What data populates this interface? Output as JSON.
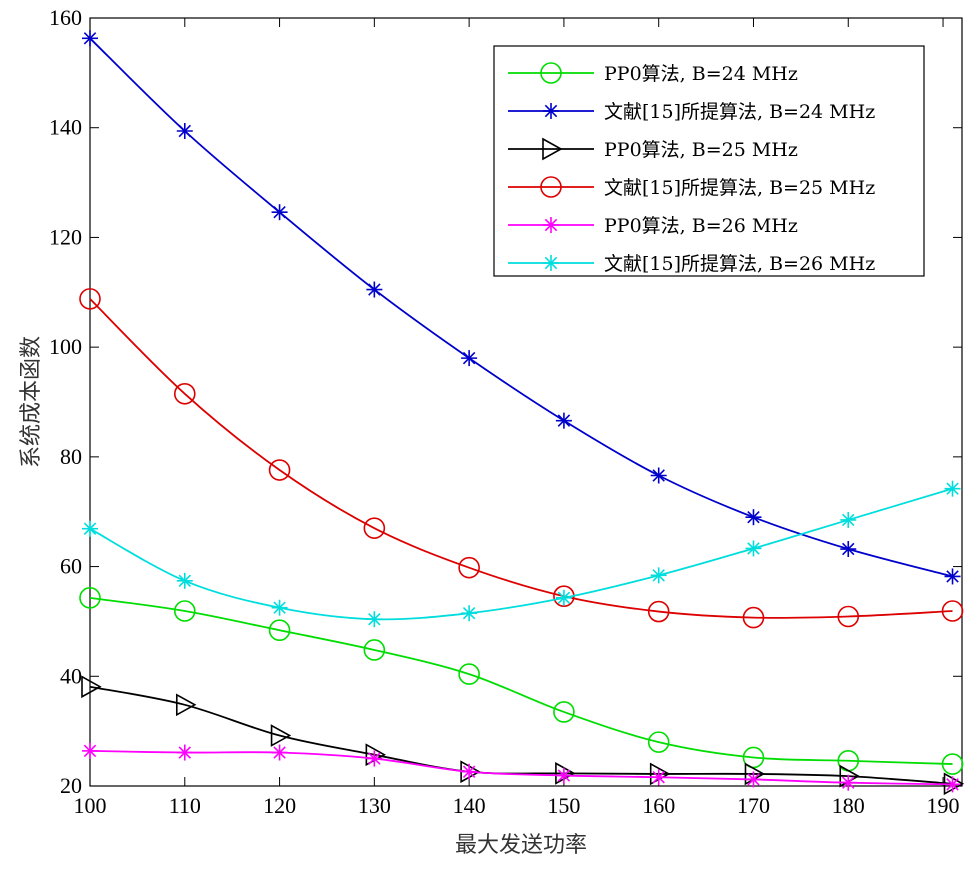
{
  "chart_data": {
    "type": "line",
    "title": "",
    "xlabel": "最大发送功率",
    "ylabel": "系统成本函数",
    "xlim": [
      100,
      192
    ],
    "ylim": [
      20,
      160
    ],
    "x_ticks": [
      100,
      110,
      120,
      130,
      140,
      150,
      160,
      170,
      180,
      190
    ],
    "y_ticks": [
      20,
      40,
      60,
      80,
      100,
      120,
      140,
      160
    ],
    "grid": false,
    "legend_position": "top-right",
    "x": [
      100,
      110,
      120,
      130,
      140,
      150,
      160,
      170,
      180,
      191
    ],
    "series": [
      {
        "name": "PP0算法, B=24 MHz",
        "color": "#00dd00",
        "marker": "circle",
        "values": [
          54.3,
          51.9,
          48.4,
          44.8,
          40.4,
          33.5,
          28.0,
          25.2,
          24.6,
          24.0
        ]
      },
      {
        "name": "文献[15]所提算法, B=24 MHz",
        "color": "#0000cc",
        "marker": "asterisk",
        "values": [
          156.3,
          139.4,
          124.6,
          110.5,
          98.0,
          86.6,
          76.6,
          69.0,
          63.2,
          58.2
        ]
      },
      {
        "name": "PP0算法, B=25 MHz",
        "color": "#000000",
        "marker": "triangle-right",
        "values": [
          38.1,
          34.8,
          29.2,
          25.7,
          22.6,
          22.3,
          22.2,
          22.2,
          21.8,
          20.4
        ]
      },
      {
        "name": "文献[15]所提算法, B=25 MHz",
        "color": "#dd0000",
        "marker": "circle",
        "values": [
          108.8,
          91.5,
          77.6,
          67.0,
          59.8,
          54.6,
          51.8,
          50.7,
          50.9,
          51.9
        ]
      },
      {
        "name": "PP0算法, B=26 MHz",
        "color": "#ff00ff",
        "marker": "asterisk",
        "values": [
          26.4,
          26.1,
          26.1,
          25.0,
          22.6,
          21.9,
          21.6,
          21.2,
          20.6,
          20.3
        ]
      },
      {
        "name": "文献[15]所提算法, B=26 MHz",
        "color": "#00dddd",
        "marker": "asterisk",
        "values": [
          66.9,
          57.4,
          52.5,
          50.4,
          51.5,
          54.3,
          58.4,
          63.3,
          68.5,
          74.2
        ]
      }
    ]
  }
}
